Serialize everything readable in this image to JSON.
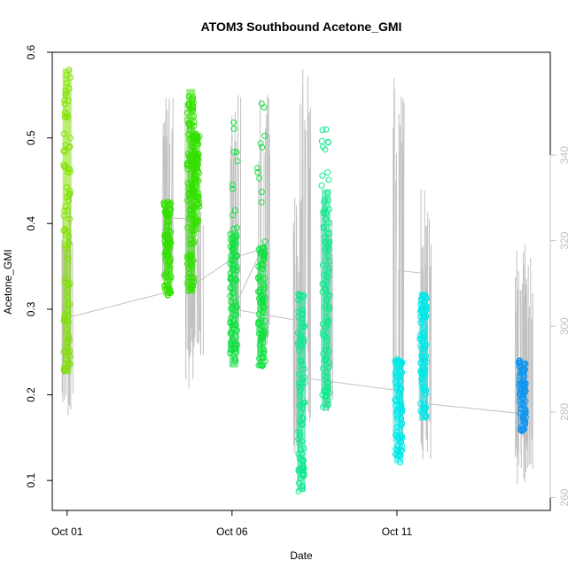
{
  "chart_data": {
    "type": "scatter",
    "title": "ATOM3 Southbound Acetone_GMI",
    "xlabel": "Date",
    "ylabel": "Acetone_GMI",
    "x_tick_labels": [
      "Oct 01",
      "Oct 06",
      "Oct 11"
    ],
    "x_tick_days": [
      1,
      6,
      11
    ],
    "xlim_days": [
      0.55,
      15.65
    ],
    "ylim": [
      0.065,
      0.6
    ],
    "y_ticks": [
      0.1,
      0.2,
      0.3,
      0.4,
      0.5,
      0.6
    ],
    "right_axis": {
      "label": "",
      "ticks": [
        260,
        280,
        300,
        320,
        340
      ],
      "ylim": [
        257,
        364
      ],
      "color": "#c0c0c0"
    },
    "grid": false,
    "legend": "none",
    "series": [
      {
        "color": "#7fe000",
        "clusters": [
          {
            "day": 1.0,
            "ymin": 0.224,
            "ymax": 0.581,
            "sparse_top": 0.581
          }
        ]
      },
      {
        "color": "#33e000",
        "clusters": [
          {
            "day": 4.05,
            "ymin": 0.316,
            "ymax": 0.42,
            "sparse_top": 0.425
          },
          {
            "day": 4.75,
            "ymin": 0.318,
            "ymax": 0.557,
            "sparse_top": 0.557
          },
          {
            "day": 4.9,
            "ymin": 0.39,
            "ymax": 0.5,
            "sparse_top": 0.505
          }
        ]
      },
      {
        "color": "#10e040",
        "clusters": [
          {
            "day": 6.05,
            "ymin": 0.232,
            "ymax": 0.39,
            "sparse_top": 0.518
          },
          {
            "day": 6.9,
            "ymin": 0.232,
            "ymax": 0.375,
            "sparse_top": 0.54
          }
        ]
      },
      {
        "color": "#0fe890",
        "clusters": [
          {
            "day": 8.1,
            "ymin": 0.087,
            "ymax": 0.32,
            "sparse_top": 0.32
          },
          {
            "day": 8.85,
            "ymin": 0.185,
            "ymax": 0.44,
            "sparse_top": 0.51
          }
        ]
      },
      {
        "color": "#00e8e8",
        "clusters": [
          {
            "day": 11.05,
            "ymin": 0.12,
            "ymax": 0.242,
            "sparse_top": 0.242
          },
          {
            "day": 11.8,
            "ymin": 0.17,
            "ymax": 0.32,
            "sparse_top": 0.32
          }
        ]
      },
      {
        "color": "#1496ee",
        "clusters": [
          {
            "day": 14.8,
            "ymin": 0.157,
            "ymax": 0.24,
            "sparse_top": 0.24
          }
        ]
      }
    ],
    "secondary_line": {
      "color": "#c0c0c0",
      "points": [
        [
          1.0,
          0.29
        ],
        [
          4.05,
          0.32
        ],
        [
          4.05,
          0.407
        ],
        [
          4.75,
          0.405
        ],
        [
          4.9,
          0.33
        ],
        [
          6.05,
          0.36
        ],
        [
          6.9,
          0.37
        ],
        [
          6.05,
          0.3
        ],
        [
          8.1,
          0.286
        ],
        [
          8.1,
          0.22
        ],
        [
          11.05,
          0.205
        ],
        [
          11.05,
          0.345
        ],
        [
          11.8,
          0.342
        ],
        [
          11.8,
          0.19
        ],
        [
          14.8,
          0.178
        ],
        [
          14.8,
          0.33
        ]
      ],
      "spikes": [
        {
          "day": 1.0,
          "ymin": 0.17,
          "ymax": 0.44
        },
        {
          "day": 4.05,
          "ymin": 0.32,
          "ymax": 0.547
        },
        {
          "day": 4.75,
          "ymin": 0.207,
          "ymax": 0.55
        },
        {
          "day": 4.95,
          "ymin": 0.245,
          "ymax": 0.42
        },
        {
          "day": 6.1,
          "ymin": 0.23,
          "ymax": 0.55
        },
        {
          "day": 6.95,
          "ymin": 0.23,
          "ymax": 0.55
        },
        {
          "day": 8.05,
          "ymin": 0.12,
          "ymax": 0.43
        },
        {
          "day": 8.2,
          "ymin": 0.16,
          "ymax": 0.58
        },
        {
          "day": 8.9,
          "ymin": 0.18,
          "ymax": 0.44
        },
        {
          "day": 11.05,
          "ymin": 0.13,
          "ymax": 0.57
        },
        {
          "day": 11.85,
          "ymin": 0.115,
          "ymax": 0.44
        },
        {
          "day": 14.75,
          "ymin": 0.09,
          "ymax": 0.375
        },
        {
          "day": 14.95,
          "ymin": 0.1,
          "ymax": 0.36
        }
      ]
    }
  }
}
